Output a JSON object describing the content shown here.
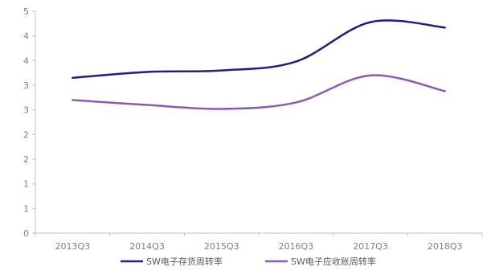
{
  "chart_data": {
    "type": "line",
    "title": "",
    "xlabel": "",
    "ylabel": "",
    "categories": [
      "2013Q3",
      "2014Q3",
      "2015Q3",
      "2016Q3",
      "2017Q3",
      "2018Q3"
    ],
    "ylim": [
      0,
      4.5
    ],
    "yticks": [
      0,
      0.5,
      1,
      1.5,
      2,
      2.5,
      3,
      3.5,
      4,
      4.5
    ],
    "ytick_labels": [
      "0",
      "1",
      "1",
      "2",
      "2",
      "3",
      "3",
      "4",
      "4",
      "5"
    ],
    "grid": false,
    "smooth": true,
    "legend_position": "bottom",
    "series": [
      {
        "name": "SW电子存货周转率",
        "color": "#1f1f86",
        "values": [
          3.15,
          3.27,
          3.3,
          3.48,
          4.28,
          4.17
        ]
      },
      {
        "name": "SW电子应收账周转率",
        "color": "#8a5bb5",
        "values": [
          2.7,
          2.6,
          2.52,
          2.65,
          3.2,
          2.88
        ]
      }
    ]
  }
}
